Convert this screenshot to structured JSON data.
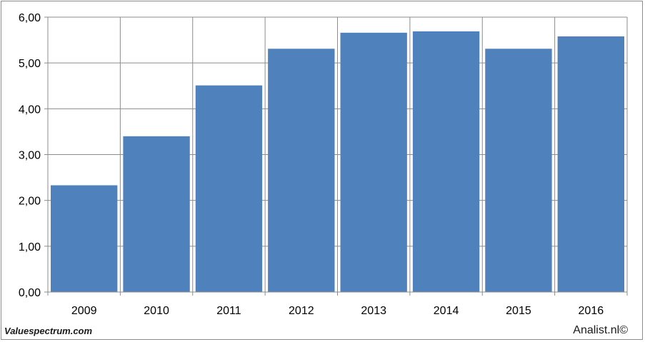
{
  "chart_data": {
    "type": "bar",
    "categories": [
      "2009",
      "2010",
      "2011",
      "2012",
      "2013",
      "2014",
      "2015",
      "2016"
    ],
    "values": [
      2.33,
      3.4,
      4.51,
      5.31,
      5.66,
      5.69,
      5.31,
      5.58
    ],
    "ylim": [
      0,
      6
    ],
    "yticks": [
      "0,00",
      "1,00",
      "2,00",
      "3,00",
      "4,00",
      "5,00",
      "6,00"
    ],
    "grid": true,
    "bar_color": "#4f81bd"
  },
  "footer": {
    "source": "Valuespectrum.com",
    "credit": "Analist.nl©"
  }
}
